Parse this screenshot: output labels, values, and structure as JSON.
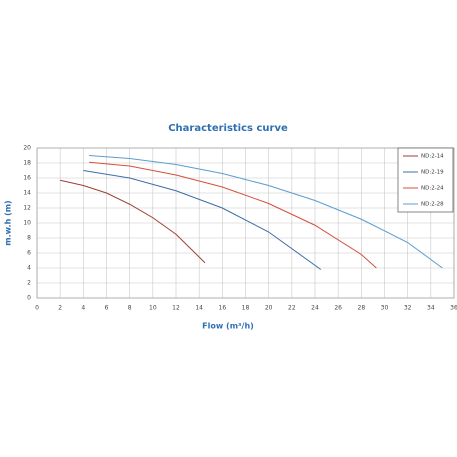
{
  "chart_data": {
    "type": "line",
    "title": "Characteristics curve",
    "x_label": "Flow (m³/h)",
    "y_label": "m.w.h (m)",
    "xlim": [
      0,
      36
    ],
    "xticks": [
      0,
      2,
      4,
      6,
      8,
      10,
      12,
      14,
      16,
      18,
      20,
      22,
      24,
      26,
      28,
      30,
      32,
      34,
      36
    ],
    "ylim": [
      0,
      20
    ],
    "yticks": [
      0,
      2,
      4,
      6,
      8,
      10,
      12,
      14,
      16,
      18,
      20
    ],
    "grid": true,
    "legend": "top-right",
    "series": [
      {
        "name": "ND:2-14",
        "color": "#9e3f35",
        "x": [
          2,
          4,
          6,
          8,
          10,
          12,
          14.5
        ],
        "values": [
          15.7,
          15.0,
          14.0,
          12.5,
          10.7,
          8.5,
          4.7
        ]
      },
      {
        "name": "ND:2-19",
        "color": "#3d6fa6",
        "x": [
          4,
          8,
          12,
          16,
          20,
          24.5
        ],
        "values": [
          17.0,
          16.0,
          14.3,
          12.0,
          8.8,
          3.8
        ]
      },
      {
        "name": "ND:2-24",
        "color": "#d4503c",
        "x": [
          4.5,
          8,
          12,
          16,
          20,
          24,
          28,
          29.3
        ],
        "values": [
          18.1,
          17.6,
          16.4,
          14.8,
          12.6,
          9.7,
          5.8,
          4.0
        ]
      },
      {
        "name": "ND:2-28",
        "color": "#5b9dcf",
        "x": [
          4.5,
          8,
          12,
          16,
          20,
          24,
          28,
          32,
          35
        ],
        "values": [
          19.0,
          18.6,
          17.8,
          16.6,
          15.0,
          13.0,
          10.5,
          7.4,
          4.0
        ]
      }
    ]
  }
}
